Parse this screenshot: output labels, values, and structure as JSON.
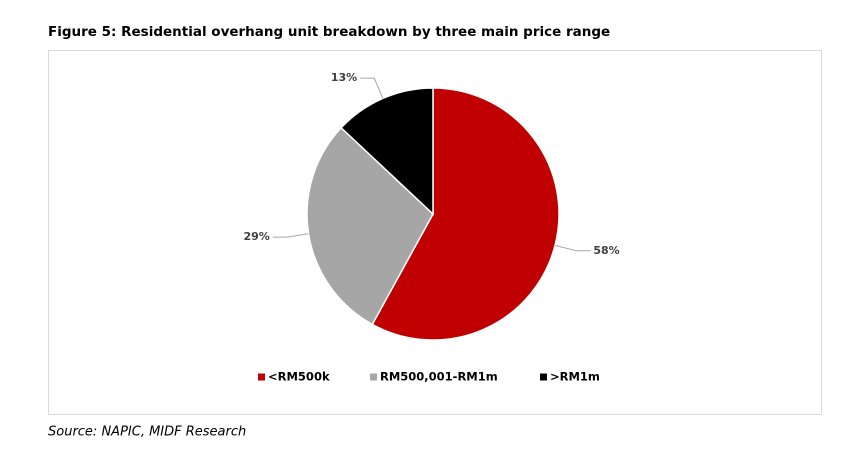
{
  "chart_data": {
    "type": "pie",
    "title": "Figure 5: Residential overhang unit breakdown by three main price range",
    "categories": [
      "<RM500k",
      "RM500,001-RM1m",
      ">RM1m"
    ],
    "values": [
      58,
      29,
      13
    ],
    "value_labels": [
      "58%",
      "29%",
      "13%"
    ],
    "colors": [
      "#c00000",
      "#a6a6a6",
      "#000000"
    ],
    "legend": "bottom",
    "source": "Source: NAPIC, MIDF Research"
  }
}
